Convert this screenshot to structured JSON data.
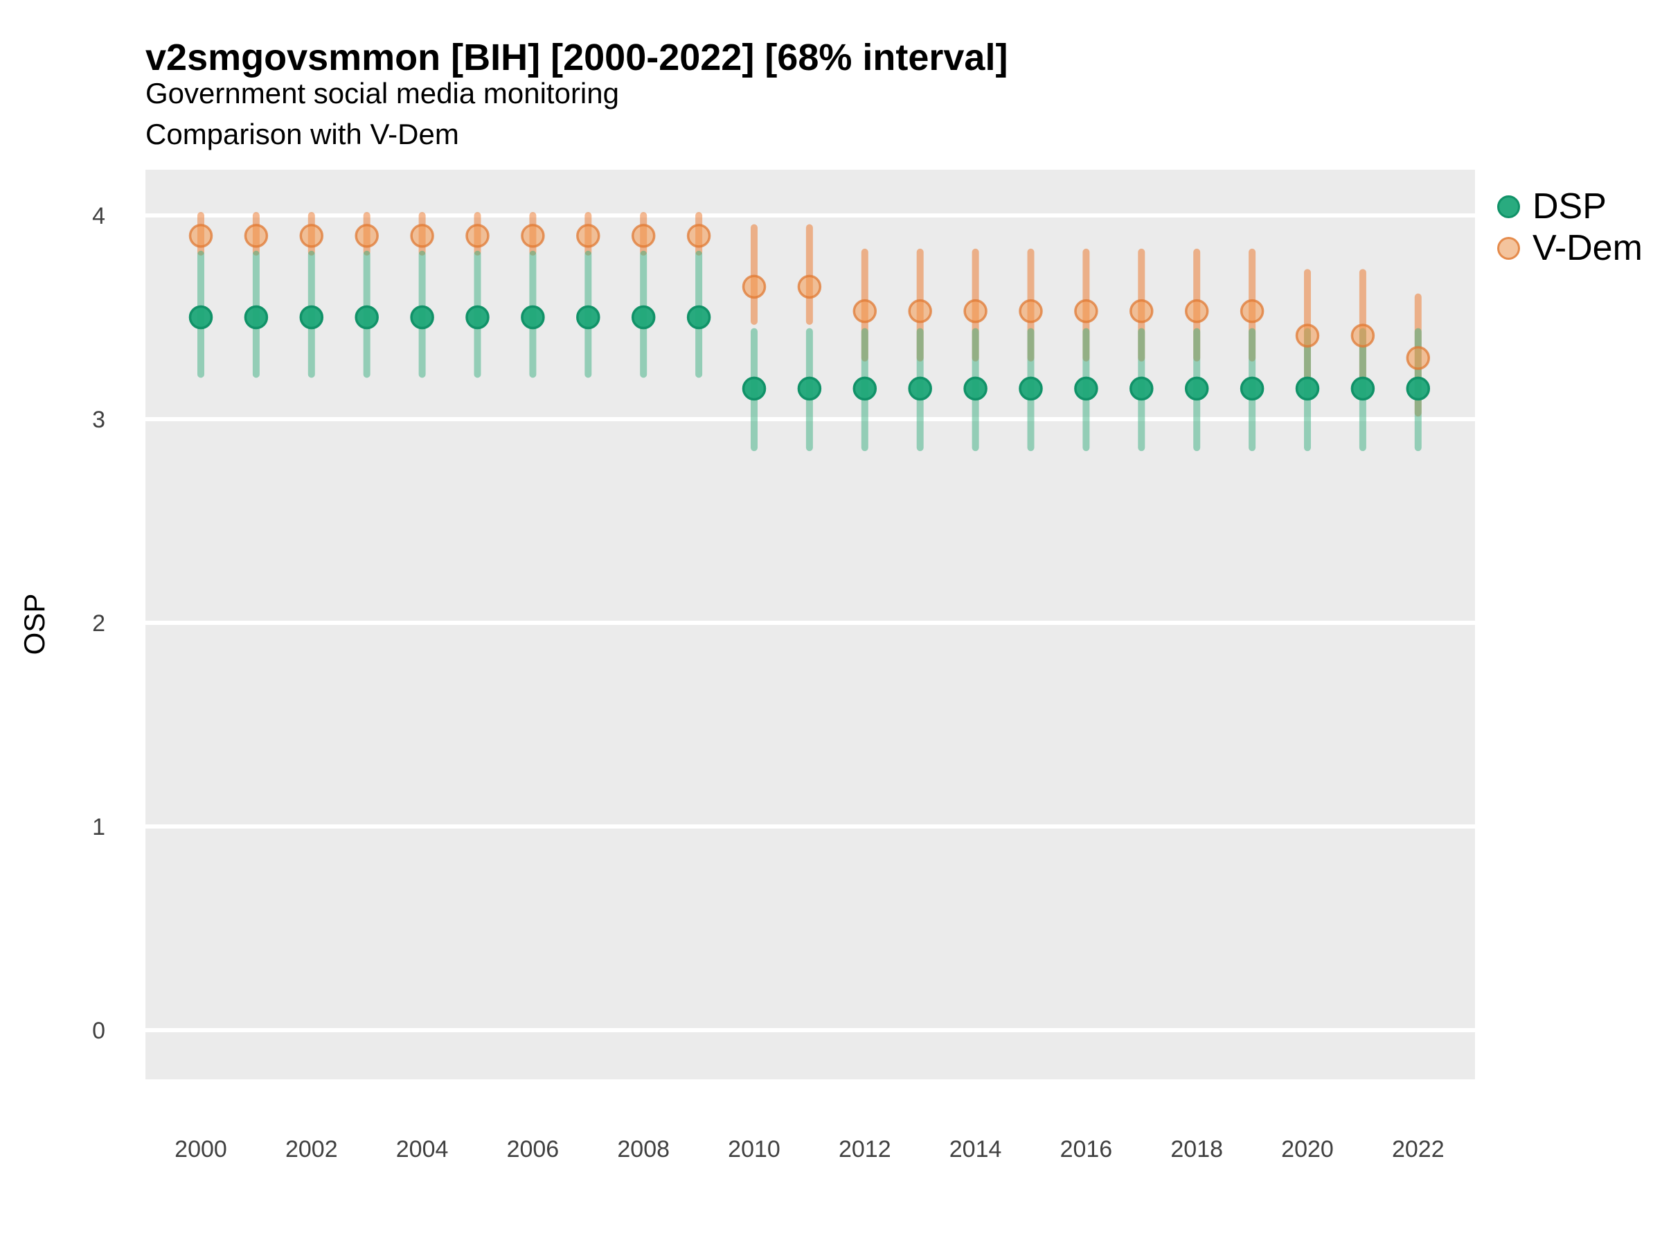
{
  "header": {
    "title": "v2smgovsmmon [BIH] [2000-2022] [68% interval]",
    "subtitle_line1": "Government social media monitoring",
    "subtitle_line2": "Comparison with V-Dem"
  },
  "axes": {
    "y_title": "OSP",
    "y_ticks": [
      4,
      3,
      2,
      1,
      0
    ],
    "x_ticks": [
      2000,
      2002,
      2004,
      2006,
      2008,
      2010,
      2012,
      2014,
      2016,
      2018,
      2020,
      2022
    ]
  },
  "legend": {
    "items": [
      {
        "label": "DSP"
      },
      {
        "label": "V-Dem"
      }
    ]
  },
  "colors": {
    "panel_bg": "#EBEBEB",
    "grid": "#FFFFFF",
    "tick_label": "#404040",
    "dsp_line": "rgba(60,175,130,0.5)",
    "dsp_point_fill": "rgba(30,166,120,0.95)",
    "dsp_point_stroke": "rgba(17,146,104,1)",
    "vdem_line": "rgba(235,115,37,0.5)",
    "vdem_point_fill": "rgba(244,153,80,0.55)",
    "vdem_point_stroke": "rgba(224,120,50,0.75)"
  },
  "chart_data": {
    "type": "scatter",
    "subtype": "pointrange",
    "interval": "68%",
    "title": "v2smgovsmmon [BIH] [2000-2022] [68% interval]",
    "xlabel": "",
    "ylabel": "OSP",
    "ylim": [
      -0.24,
      4.22
    ],
    "xlim": [
      1999,
      2023
    ],
    "grid": "horizontal-major-only",
    "legend_position": "right",
    "x": [
      2000,
      2001,
      2002,
      2003,
      2004,
      2005,
      2006,
      2007,
      2008,
      2009,
      2010,
      2011,
      2012,
      2013,
      2014,
      2015,
      2016,
      2017,
      2018,
      2019,
      2020,
      2021,
      2022
    ],
    "series": [
      {
        "name": "DSP",
        "values": [
          3.5,
          3.5,
          3.5,
          3.5,
          3.5,
          3.5,
          3.5,
          3.5,
          3.5,
          3.5,
          3.15,
          3.15,
          3.15,
          3.15,
          3.15,
          3.15,
          3.15,
          3.15,
          3.15,
          3.15,
          3.15,
          3.15,
          3.15
        ],
        "lower": [
          3.22,
          3.22,
          3.22,
          3.22,
          3.22,
          3.22,
          3.22,
          3.22,
          3.22,
          3.22,
          2.86,
          2.86,
          2.86,
          2.86,
          2.86,
          2.86,
          2.86,
          2.86,
          2.86,
          2.86,
          2.86,
          2.86,
          2.86
        ],
        "upper": [
          3.81,
          3.81,
          3.81,
          3.81,
          3.81,
          3.81,
          3.81,
          3.81,
          3.81,
          3.81,
          3.43,
          3.43,
          3.43,
          3.43,
          3.43,
          3.43,
          3.43,
          3.43,
          3.43,
          3.43,
          3.43,
          3.43,
          3.43
        ]
      },
      {
        "name": "V-Dem",
        "values": [
          3.9,
          3.9,
          3.9,
          3.9,
          3.9,
          3.9,
          3.9,
          3.9,
          3.9,
          3.9,
          3.65,
          3.65,
          3.53,
          3.53,
          3.53,
          3.53,
          3.53,
          3.53,
          3.53,
          3.53,
          3.41,
          3.41,
          3.3
        ],
        "lower": [
          3.82,
          3.82,
          3.82,
          3.82,
          3.82,
          3.82,
          3.82,
          3.82,
          3.82,
          3.82,
          3.48,
          3.48,
          3.3,
          3.3,
          3.3,
          3.3,
          3.3,
          3.3,
          3.3,
          3.3,
          3.21,
          3.21,
          3.03
        ],
        "upper": [
          4.0,
          4.0,
          4.0,
          4.0,
          4.0,
          4.0,
          4.0,
          4.0,
          4.0,
          4.0,
          3.94,
          3.94,
          3.82,
          3.82,
          3.82,
          3.82,
          3.82,
          3.82,
          3.82,
          3.82,
          3.72,
          3.72,
          3.6
        ]
      }
    ]
  }
}
